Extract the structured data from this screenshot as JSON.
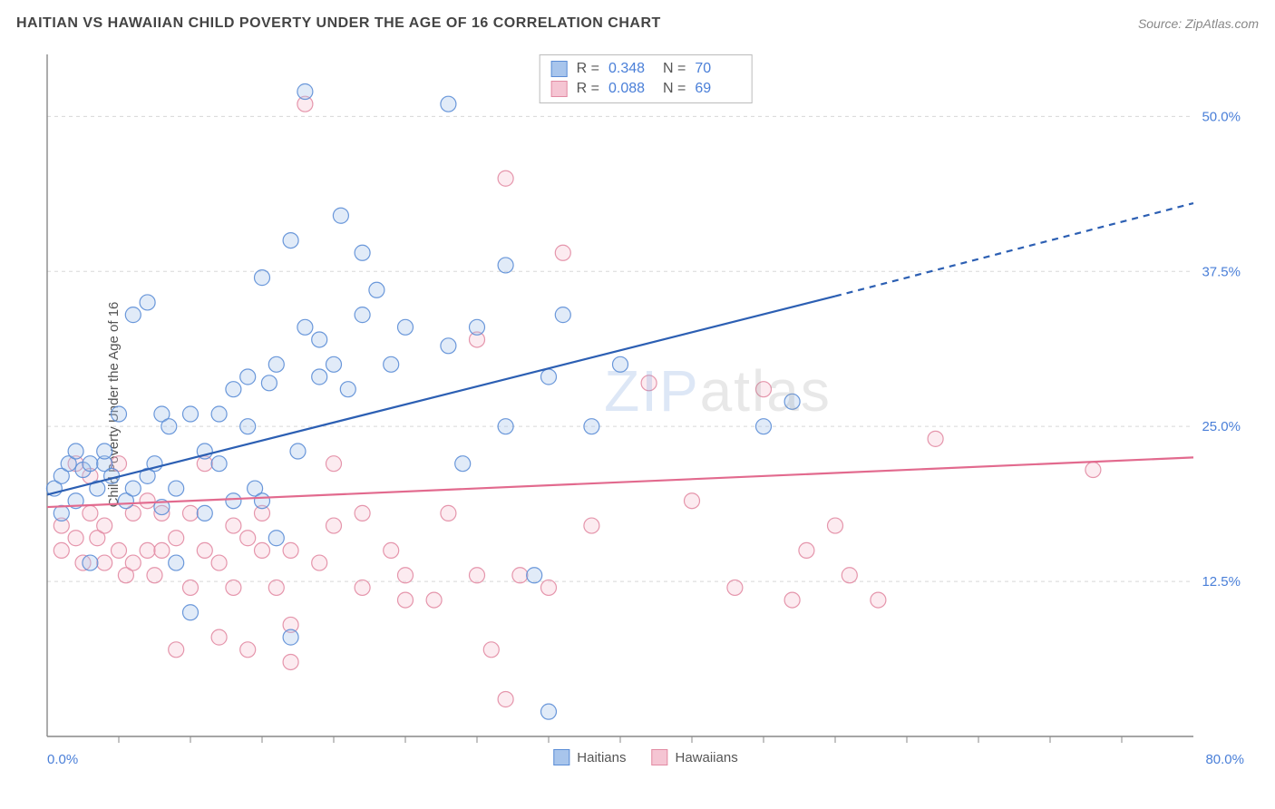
{
  "header": {
    "title": "HAITIAN VS HAWAIIAN CHILD POVERTY UNDER THE AGE OF 16 CORRELATION CHART",
    "source": "Source: ZipAtlas.com"
  },
  "watermark": {
    "part1": "ZIP",
    "part2": "atlas"
  },
  "chart": {
    "type": "scatter",
    "ylabel": "Child Poverty Under the Age of 16",
    "xlim": [
      0,
      80
    ],
    "ylim": [
      0,
      55
    ],
    "x_origin_label": "0.0%",
    "x_max_label": "80.0%",
    "y_ticks": [
      12.5,
      25.0,
      37.5,
      50.0
    ],
    "y_tick_labels": [
      "12.5%",
      "25.0%",
      "37.5%",
      "50.0%"
    ],
    "x_minor_ticks": [
      5,
      10,
      15,
      20,
      25,
      30,
      35,
      40,
      45,
      50,
      55,
      60,
      65,
      70,
      75
    ],
    "background_color": "#ffffff",
    "grid_color": "#d8d8d8",
    "axis_color": "#888888",
    "tick_label_color": "#4a7fd8",
    "marker_radius": 8.5,
    "marker_fill_opacity": 0.35,
    "marker_stroke_opacity": 0.9,
    "marker_stroke_width": 1.2,
    "series": [
      {
        "name": "Haitians",
        "color_stroke": "#5b8dd6",
        "color_fill": "#a8c5ec",
        "r_label": "R =",
        "r_value": "0.348",
        "n_label": "N =",
        "n_value": "70",
        "trend": {
          "x1": 0,
          "y1": 19.5,
          "x2": 55,
          "y2": 35.5,
          "x2_dash": 80,
          "y2_dash": 43,
          "color": "#2c5fb3",
          "width": 2.2
        },
        "points": [
          [
            0.5,
            20
          ],
          [
            1,
            21
          ],
          [
            1,
            18
          ],
          [
            1.5,
            22
          ],
          [
            2,
            23
          ],
          [
            2.5,
            21.5
          ],
          [
            2,
            19
          ],
          [
            3,
            22
          ],
          [
            3,
            14
          ],
          [
            3.5,
            20
          ],
          [
            4,
            22
          ],
          [
            4,
            23
          ],
          [
            4.5,
            21
          ],
          [
            5,
            26
          ],
          [
            5.5,
            19
          ],
          [
            6,
            20
          ],
          [
            6,
            34
          ],
          [
            7,
            21
          ],
          [
            7,
            35
          ],
          [
            7.5,
            22
          ],
          [
            8,
            18.5
          ],
          [
            8,
            26
          ],
          [
            8.5,
            25
          ],
          [
            9,
            20
          ],
          [
            9,
            14
          ],
          [
            10,
            26
          ],
          [
            10,
            10
          ],
          [
            11,
            23
          ],
          [
            11,
            18
          ],
          [
            12,
            22
          ],
          [
            12,
            26
          ],
          [
            13,
            28
          ],
          [
            13,
            19
          ],
          [
            14,
            29
          ],
          [
            14,
            25
          ],
          [
            14.5,
            20
          ],
          [
            15,
            19
          ],
          [
            15,
            37
          ],
          [
            15.5,
            28.5
          ],
          [
            16,
            30
          ],
          [
            16,
            16
          ],
          [
            17,
            40
          ],
          [
            17.5,
            23
          ],
          [
            17,
            8
          ],
          [
            18,
            52
          ],
          [
            18,
            33
          ],
          [
            19,
            29
          ],
          [
            19,
            32
          ],
          [
            20,
            30
          ],
          [
            20.5,
            42
          ],
          [
            21,
            28
          ],
          [
            22,
            39
          ],
          [
            22,
            34
          ],
          [
            23,
            36
          ],
          [
            24,
            30
          ],
          [
            25,
            33
          ],
          [
            28,
            51
          ],
          [
            28,
            31.5
          ],
          [
            29,
            22
          ],
          [
            30,
            33
          ],
          [
            32,
            38
          ],
          [
            32,
            25
          ],
          [
            34,
            13
          ],
          [
            35,
            29
          ],
          [
            35,
            2
          ],
          [
            36,
            34
          ],
          [
            38,
            25
          ],
          [
            40,
            30
          ],
          [
            50,
            25
          ],
          [
            52,
            27
          ]
        ]
      },
      {
        "name": "Hawaiians",
        "color_stroke": "#e28ba3",
        "color_fill": "#f5c5d3",
        "r_label": "R =",
        "r_value": "0.088",
        "n_label": "N =",
        "n_value": "69",
        "trend": {
          "x1": 0,
          "y1": 18.5,
          "x2": 80,
          "y2": 22.5,
          "color": "#e26a8e",
          "width": 2.2
        },
        "points": [
          [
            1,
            17
          ],
          [
            1,
            15
          ],
          [
            2,
            22
          ],
          [
            2,
            16
          ],
          [
            2.5,
            14
          ],
          [
            3,
            18
          ],
          [
            3,
            21
          ],
          [
            3.5,
            16
          ],
          [
            4,
            17
          ],
          [
            4,
            14
          ],
          [
            5,
            22
          ],
          [
            5,
            15
          ],
          [
            5.5,
            13
          ],
          [
            6,
            18
          ],
          [
            6,
            14
          ],
          [
            7,
            15
          ],
          [
            7,
            19
          ],
          [
            7.5,
            13
          ],
          [
            8,
            18
          ],
          [
            8,
            15
          ],
          [
            9,
            7
          ],
          [
            9,
            16
          ],
          [
            10,
            18
          ],
          [
            10,
            12
          ],
          [
            11,
            15
          ],
          [
            11,
            22
          ],
          [
            12,
            14
          ],
          [
            12,
            8
          ],
          [
            13,
            17
          ],
          [
            13,
            12
          ],
          [
            14,
            16
          ],
          [
            14,
            7
          ],
          [
            15,
            15
          ],
          [
            15,
            18
          ],
          [
            16,
            12
          ],
          [
            17,
            15
          ],
          [
            17,
            9
          ],
          [
            17,
            6
          ],
          [
            18,
            51
          ],
          [
            19,
            14
          ],
          [
            20,
            17
          ],
          [
            20,
            22
          ],
          [
            22,
            12
          ],
          [
            22,
            18
          ],
          [
            24,
            15
          ],
          [
            25,
            13
          ],
          [
            25,
            11
          ],
          [
            27,
            11
          ],
          [
            28,
            18
          ],
          [
            30,
            13
          ],
          [
            30,
            32
          ],
          [
            31,
            7
          ],
          [
            32,
            45
          ],
          [
            32,
            3
          ],
          [
            33,
            13
          ],
          [
            35,
            12
          ],
          [
            36,
            39
          ],
          [
            38,
            17
          ],
          [
            42,
            28.5
          ],
          [
            45,
            19
          ],
          [
            48,
            12
          ],
          [
            50,
            28
          ],
          [
            52,
            11
          ],
          [
            53,
            15
          ],
          [
            55,
            17
          ],
          [
            56,
            13
          ],
          [
            58,
            11
          ],
          [
            62,
            24
          ],
          [
            73,
            21.5
          ]
        ]
      }
    ]
  },
  "legend": {
    "series1_label": "Haitians",
    "series2_label": "Hawaiians"
  }
}
